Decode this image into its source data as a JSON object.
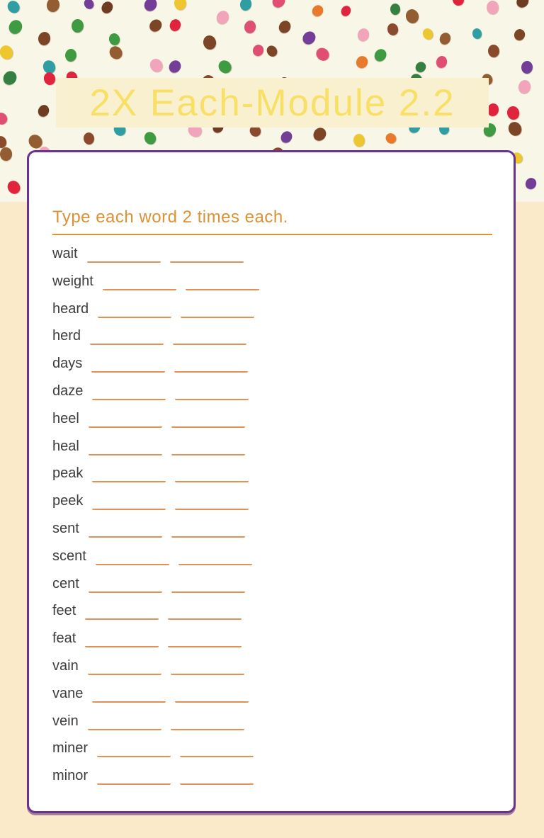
{
  "page": {
    "title": "2X Each-Module 2.2",
    "colors": {
      "page_background": "#fbeaca",
      "confetti_background": "#f8f6e6",
      "title_band": "#f9f0d0",
      "title_text": "#f8df66",
      "card_border": "#6b3191",
      "accent_orange": "#db9134",
      "blank_line": "#df9156",
      "word_text": "#3d3d3f"
    },
    "confetti_palette": [
      "#7c4526",
      "#8b4a2b",
      "#935c31",
      "#6f3b22",
      "#e1243d",
      "#e97a2b",
      "#eec62f",
      "#2e9ea3",
      "#3f9b42",
      "#357f43",
      "#733e98",
      "#f2a5ba",
      "#e04e74",
      "#8b4a2b",
      "#7c4526"
    ]
  },
  "worksheet": {
    "instruction": "Type each word 2 times each.",
    "blanks_per_word": 2,
    "blank_value": "",
    "words": [
      "wait",
      "weight",
      "heard",
      "herd",
      "days",
      "daze",
      "heel",
      "heal",
      "peak",
      "peek",
      "sent",
      "scent",
      "cent",
      "feet",
      "feat",
      "vain",
      "vane",
      "vein",
      "miner",
      "minor"
    ]
  }
}
